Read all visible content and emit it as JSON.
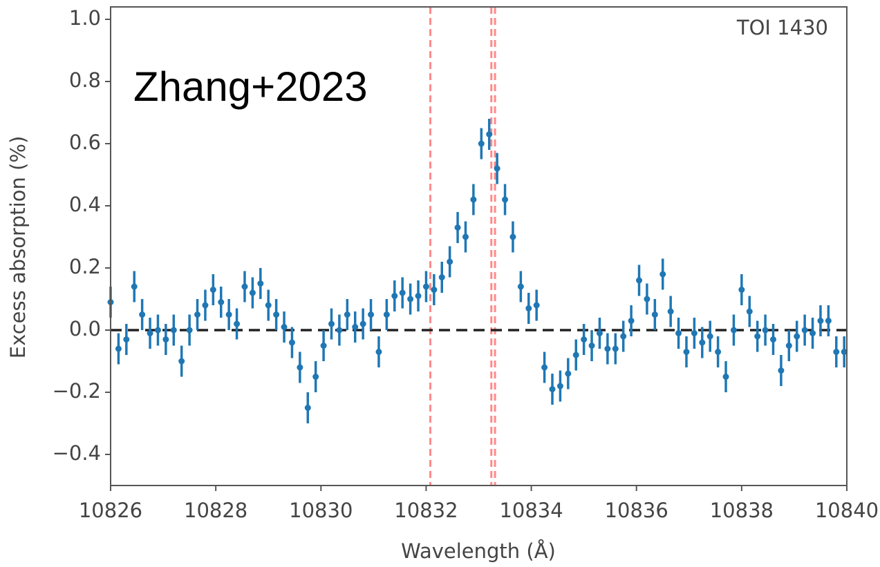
{
  "chart_data": {
    "type": "scatter",
    "title": "TOI 1430",
    "annotation": "Zhang+2023",
    "x_label": "Wavelength (Å)",
    "y_label": "Excess absorption (%)",
    "xlim": [
      10826,
      10840
    ],
    "ylim": [
      -0.5,
      1.04
    ],
    "xticks": [
      10826,
      10828,
      10830,
      10832,
      10834,
      10836,
      10838,
      10840
    ],
    "yticks": [
      {
        "value": -0.4,
        "label": "−0.4"
      },
      {
        "value": -0.2,
        "label": "−0.2"
      },
      {
        "value": 0,
        "label": "0.0"
      },
      0.2,
      0.4,
      0.6,
      0.8,
      {
        "value": 1,
        "label": "1.0"
      }
    ],
    "hline": 0,
    "vlines": [
      10832.08,
      10833.24,
      10833.31
    ],
    "vline_color": "#ff8a8a",
    "color": "#1f77b4",
    "yerr": 0.05,
    "x": [
      10826.0,
      10826.15,
      10826.3,
      10826.45,
      10826.6,
      10826.75,
      10826.9,
      10827.05,
      10827.2,
      10827.35,
      10827.5,
      10827.65,
      10827.8,
      10827.95,
      10828.1,
      10828.25,
      10828.4,
      10828.55,
      10828.7,
      10828.85,
      10829.0,
      10829.15,
      10829.3,
      10829.45,
      10829.6,
      10829.75,
      10829.9,
      10830.05,
      10830.2,
      10830.35,
      10830.5,
      10830.65,
      10830.8,
      10830.95,
      10831.1,
      10831.25,
      10831.4,
      10831.55,
      10831.7,
      10831.85,
      10832.0,
      10832.15,
      10832.3,
      10832.45,
      10832.6,
      10832.75,
      10832.9,
      10833.05,
      10833.2,
      10833.35,
      10833.5,
      10833.65,
      10833.8,
      10833.95,
      10834.1,
      10834.25,
      10834.4,
      10834.55,
      10834.7,
      10834.85,
      10835.0,
      10835.15,
      10835.3,
      10835.45,
      10835.6,
      10835.75,
      10835.9,
      10836.05,
      10836.2,
      10836.35,
      10836.5,
      10836.65,
      10836.8,
      10836.95,
      10837.1,
      10837.25,
      10837.4,
      10837.55,
      10837.7,
      10837.85,
      10838.0,
      10838.15,
      10838.3,
      10838.45,
      10838.6,
      10838.75,
      10838.9,
      10839.05,
      10839.2,
      10839.35,
      10839.5,
      10839.65,
      10839.8,
      10839.95
    ],
    "values": [
      0.09,
      -0.06,
      -0.03,
      0.14,
      0.05,
      -0.01,
      0.0,
      -0.03,
      0.0,
      -0.1,
      0.0,
      0.05,
      0.08,
      0.13,
      0.09,
      0.05,
      0.02,
      0.14,
      0.12,
      0.15,
      0.08,
      0.05,
      0.01,
      -0.04,
      -0.12,
      -0.25,
      -0.15,
      -0.05,
      0.02,
      0.0,
      0.05,
      0.01,
      0.02,
      0.05,
      -0.07,
      0.05,
      0.11,
      0.12,
      0.1,
      0.11,
      0.14,
      0.13,
      0.17,
      0.22,
      0.33,
      0.3,
      0.42,
      0.6,
      0.63,
      0.52,
      0.42,
      0.3,
      0.14,
      0.07,
      0.08,
      -0.12,
      -0.19,
      -0.18,
      -0.14,
      -0.08,
      -0.03,
      -0.05,
      -0.01,
      -0.06,
      -0.06,
      -0.02,
      0.03,
      0.16,
      0.1,
      0.05,
      0.18,
      0.06,
      -0.01,
      -0.07,
      -0.01,
      -0.04,
      -0.02,
      -0.07,
      -0.15,
      0.0,
      0.13,
      0.06,
      -0.02,
      0.0,
      -0.03,
      -0.13,
      -0.05,
      -0.02,
      0.0,
      -0.01,
      0.03,
      0.03,
      -0.07,
      -0.07
    ]
  }
}
